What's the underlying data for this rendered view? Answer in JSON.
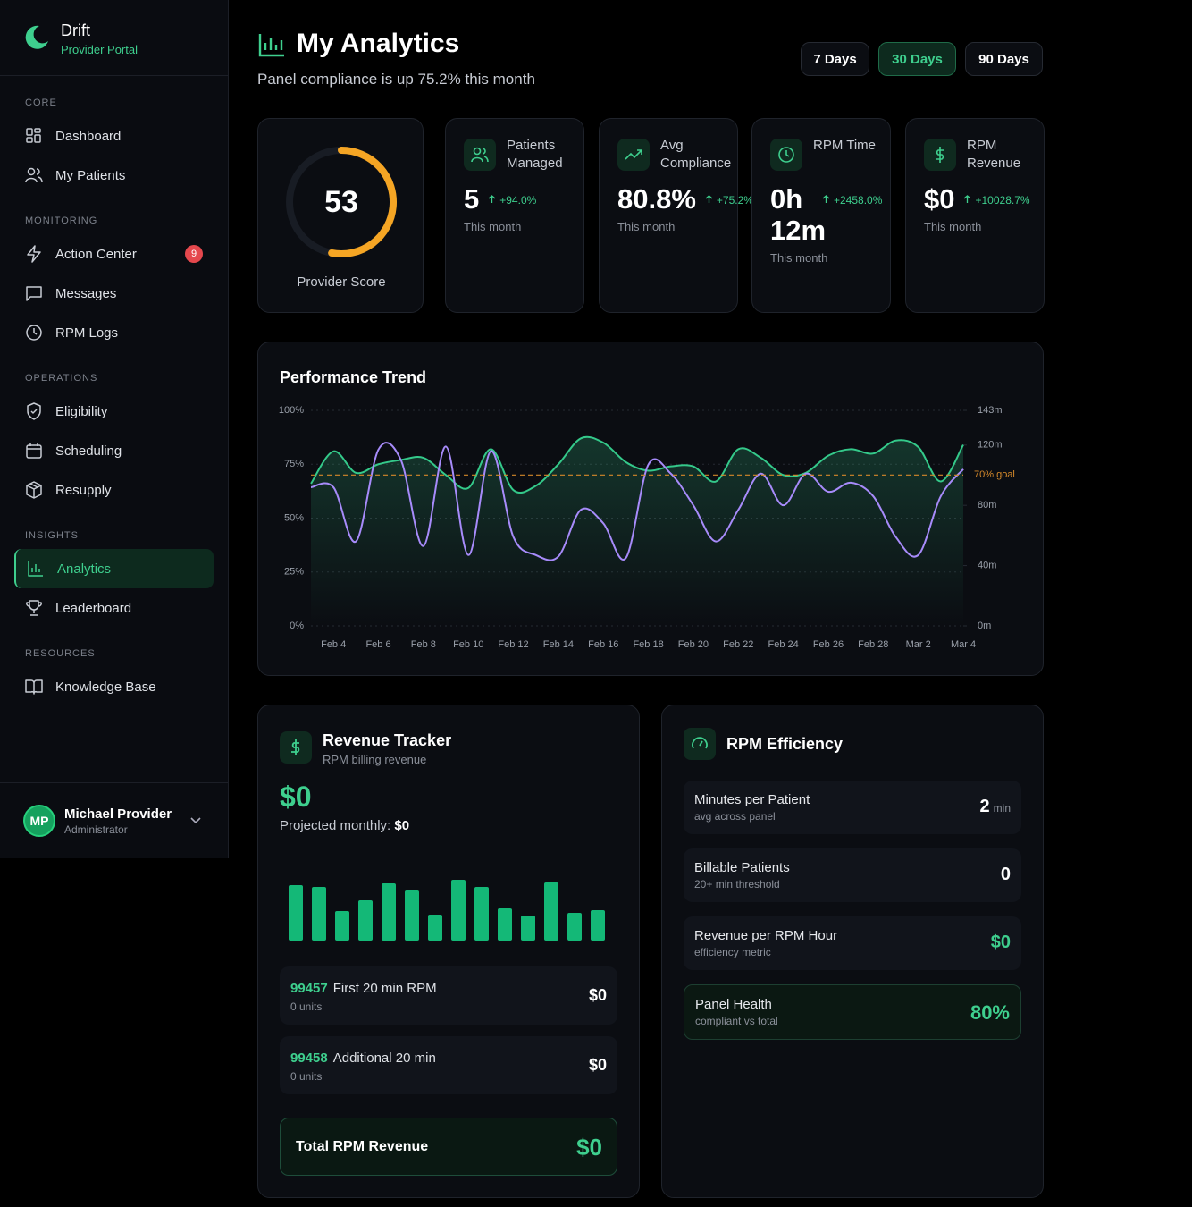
{
  "sidebar": {
    "brand": {
      "name": "Drift",
      "subtitle": "Provider Portal"
    },
    "sections": [
      {
        "title": "CORE",
        "items": [
          {
            "label": "Dashboard"
          },
          {
            "label": "My Patients"
          }
        ]
      },
      {
        "title": "MONITORING",
        "items": [
          {
            "label": "Action Center",
            "badge": 9
          },
          {
            "label": "Messages"
          },
          {
            "label": "RPM Logs"
          }
        ]
      },
      {
        "title": "OPERATIONS",
        "items": [
          {
            "label": "Eligibility"
          },
          {
            "label": "Scheduling"
          },
          {
            "label": "Resupply"
          }
        ]
      },
      {
        "title": "INSIGHTS",
        "items": [
          {
            "label": "Analytics",
            "active": true
          },
          {
            "label": "Leaderboard"
          }
        ]
      },
      {
        "title": "RESOURCES",
        "items": [
          {
            "label": "Knowledge Base"
          }
        ]
      }
    ],
    "user": {
      "initials": "MP",
      "name": "Michael Provider",
      "role": "Administrator"
    }
  },
  "header": {
    "title": "My Analytics",
    "subtitle": "Panel compliance is up 75.2% this month",
    "ranges": [
      "7 Days",
      "30 Days",
      "90 Days"
    ],
    "active_range": 1
  },
  "score": {
    "value": 53,
    "lim": [
      0,
      100
    ],
    "label": "Provider Score"
  },
  "stats": [
    {
      "label": "Patients Managed",
      "value": "5",
      "change": "+94.0%",
      "period": "This month"
    },
    {
      "label": "Avg Compliance",
      "value": "80.8%",
      "change": "+75.2%",
      "period": "This month"
    },
    {
      "label": "RPM Time",
      "value": "0h 12m",
      "change": "+2458.0%",
      "period": "This month"
    },
    {
      "label": "RPM Revenue",
      "value": "$0",
      "change": "+10028.7%",
      "period": "This month"
    }
  ],
  "chart_data": {
    "type": "line",
    "title": "Performance Trend",
    "categories": [
      null,
      "Feb 4",
      null,
      "Feb 6",
      null,
      "Feb 8",
      null,
      "Feb 10",
      null,
      "Feb 12",
      null,
      "Feb 14",
      null,
      "Feb 16",
      null,
      "Feb 18",
      null,
      "Feb 20",
      null,
      "Feb 22",
      null,
      "Feb 24",
      null,
      "Feb 26",
      null,
      "Feb 28",
      null,
      "Mar 2",
      null,
      "Mar 4"
    ],
    "series": [
      {
        "color": "#34c98a",
        "area": true,
        "values": [
          66,
          81,
          71,
          75,
          77,
          78,
          70,
          64,
          82,
          63,
          65,
          75,
          87,
          85,
          76,
          72,
          74,
          74,
          67,
          82,
          78,
          70,
          71,
          79,
          82,
          80,
          86,
          83,
          67,
          84
        ]
      },
      {
        "color": "#a78bfa",
        "axis": "y2",
        "values": [
          92,
          92,
          56,
          117,
          110,
          53,
          119,
          47,
          116,
          59,
          47,
          46,
          77,
          68,
          45,
          107,
          101,
          80,
          56,
          77,
          101,
          80,
          101,
          89,
          95,
          86,
          59,
          47,
          86,
          104
        ]
      }
    ],
    "ylim": [
      0,
      100
    ],
    "yticks": [
      {
        "value": 0,
        "label": "0%"
      },
      {
        "value": 25,
        "label": "25%"
      },
      {
        "value": 50,
        "label": "50%"
      },
      {
        "value": 75,
        "label": "75%"
      },
      {
        "value": 100,
        "label": "100%"
      }
    ],
    "y2lim": [
      0,
      143
    ],
    "y2ticks": [
      {
        "value": 0,
        "label": "0m"
      },
      {
        "value": 40,
        "label": "40m"
      },
      {
        "value": 80,
        "label": "80m"
      },
      {
        "value": 120,
        "label": "120m"
      },
      {
        "value": 143,
        "label": "143m"
      }
    ],
    "goal": {
      "value": 70,
      "label": "70% goal",
      "color": "#d4882a"
    },
    "grid": true
  },
  "revenue": {
    "title": "Revenue Tracker",
    "subtitle": "RPM billing revenue",
    "total": "$0",
    "projected_label": "Projected monthly:",
    "projected": "$0",
    "bars": {
      "color": "#14b877",
      "values": [
        62,
        60,
        33,
        45,
        64,
        56,
        29,
        68,
        60,
        36,
        28,
        65,
        31,
        34
      ]
    },
    "codes": [
      {
        "code": "99457",
        "name": "First 20 min RPM",
        "units": "0 units",
        "amount": "$0"
      },
      {
        "code": "99458",
        "name": "Additional 20 min",
        "units": "0 units",
        "amount": "$0"
      }
    ],
    "total_label": "Total RPM Revenue",
    "total_amount": "$0"
  },
  "efficiency": {
    "title": "RPM Efficiency",
    "metrics": [
      {
        "label": "Minutes per Patient",
        "sublabel": "avg across panel",
        "value": "2",
        "unit": "min"
      },
      {
        "label": "Billable Patients",
        "sublabel": "20+ min threshold",
        "value": "0"
      },
      {
        "label": "Revenue per RPM Hour",
        "sublabel": "efficiency metric",
        "value": "$0",
        "green": true
      },
      {
        "label": "Panel Health",
        "sublabel": "compliant vs total",
        "value": "80%",
        "green": true,
        "highlight": true
      }
    ]
  }
}
